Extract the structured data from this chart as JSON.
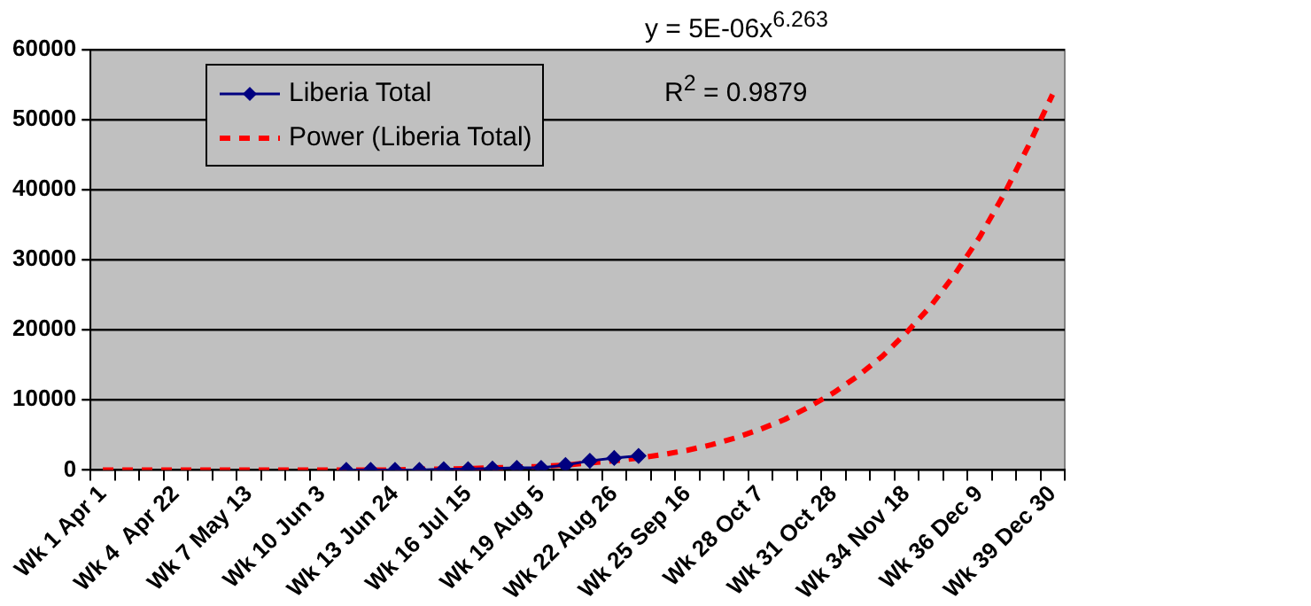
{
  "chart_data": {
    "type": "line",
    "categories": [
      "Wk 1 Apr 1",
      null,
      null,
      "Wk 4  Apr 22",
      null,
      null,
      "Wk 7 May 13",
      null,
      null,
      "Wk 10 Jun 3",
      null,
      null,
      "Wk 13 Jun 24",
      null,
      null,
      "Wk 16 Jul 15",
      null,
      null,
      "Wk 19 Aug 5",
      null,
      null,
      "Wk 22 Aug 26",
      null,
      null,
      "Wk 25 Sep 16",
      null,
      null,
      "Wk 28 Oct 7",
      null,
      null,
      "Wk 31 Oct 28",
      null,
      null,
      "Wk 34 Nov 18",
      null,
      null,
      "Wk 36 Dec 9",
      null,
      null,
      "Wk 39 Dec 30"
    ],
    "series": [
      {
        "name": "Liberia Total",
        "color": "#000080",
        "marker": "diamond",
        "line_style": "solid",
        "values": [
          null,
          null,
          null,
          null,
          null,
          null,
          null,
          null,
          null,
          null,
          0,
          0,
          0,
          0,
          100,
          100,
          200,
          300,
          300,
          700,
          1300,
          1700,
          2000,
          null,
          null,
          null,
          null,
          null,
          null,
          null,
          null,
          null,
          null,
          null,
          null,
          null,
          null,
          null,
          null,
          null
        ]
      },
      {
        "name": "Power (Liberia Total)",
        "color": "#ff0000",
        "marker": "none",
        "line_style": "dashed",
        "values": [
          0,
          0,
          0,
          0,
          0,
          0,
          0,
          0,
          0,
          0,
          0,
          0,
          0,
          100,
          100,
          200,
          300,
          400,
          500,
          700,
          1000,
          1300,
          1700,
          2200,
          2800,
          3600,
          4600,
          5800,
          7200,
          9000,
          11000,
          13400,
          16200,
          19600,
          23400,
          28000,
          33200,
          39300,
          46200,
          53600
        ]
      }
    ],
    "ylim": [
      0,
      60000
    ],
    "yticks": [
      0,
      10000,
      20000,
      30000,
      40000,
      50000,
      60000
    ],
    "grid": "y",
    "legend": "top left",
    "annotations": [
      "y = 5E-06x$^{6.263}$",
      "R$^{2}$ = 0.9879"
    ]
  }
}
